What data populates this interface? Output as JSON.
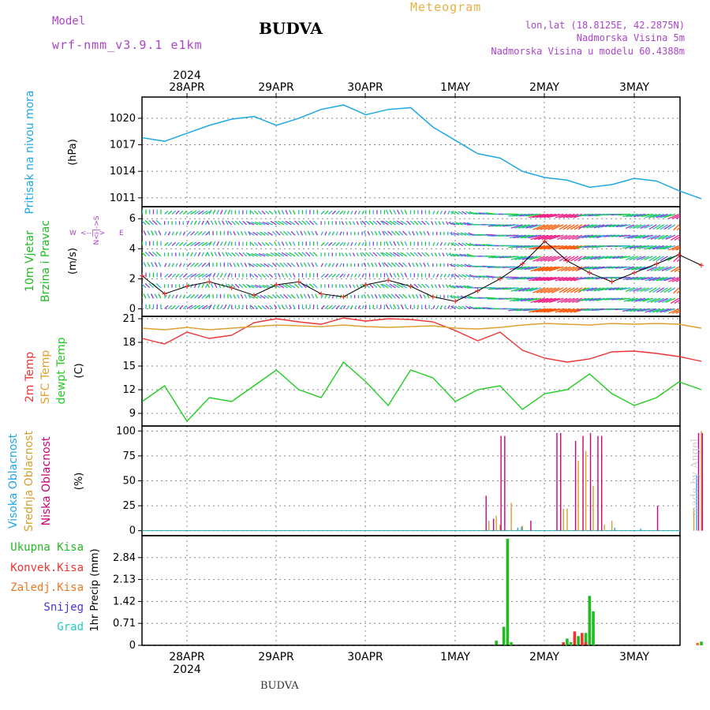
{
  "header": {
    "model_label": "Model",
    "model_name": "wrf-nmm_v3.9.1 e1km",
    "station": "BUDVA",
    "meteogram_label": "Meteogram",
    "lonlat": "lon,lat (18.8125E, 42.2875N)",
    "elevation": "Nadmorska Visina 5m",
    "model_elevation": "Nadmorska Visina u modelu 60.4388m"
  },
  "footer": {
    "station": "BUDVA",
    "credit": "made by Angel"
  },
  "colors": {
    "pressure": "#1fa8e6",
    "wind_speed_label": "#22bb22",
    "temp2m": "#ee3333",
    "sfc_temp": "#e0a030",
    "dewpoint": "#22cc22",
    "cloud_high": "#1fa8e6",
    "cloud_mid": "#d4a030",
    "cloud_low": "#cc0077",
    "precip_total": "#22bb22",
    "precip_conv": "#ee3333",
    "precip_frozen": "#ee7722",
    "precip_snow": "#4433dd",
    "precip_graupel": "#22ccbb",
    "axis_legend": "#aa44cc"
  },
  "chart_data": [
    {
      "type": "line",
      "panel": "pressure",
      "ylabel": "Pritisak na nivou mora",
      "unit": "(hPa)",
      "yticks": [
        1011,
        1014,
        1017,
        1020
      ],
      "ylim": [
        1010.0,
        1022.4
      ],
      "xlabels_top": [
        "28APR",
        "29APR",
        "30APR",
        "1MAY",
        "2MAY",
        "3MAY"
      ],
      "year": "2024",
      "x_hours": [
        0,
        6,
        12,
        18,
        24,
        30,
        36,
        42,
        48,
        54,
        60,
        66,
        72,
        78,
        84,
        90,
        96,
        102,
        108,
        114,
        120,
        126,
        132,
        138,
        144,
        150
      ],
      "values": [
        1017.8,
        1017.4,
        1018.3,
        1019.2,
        1019.9,
        1020.2,
        1019.2,
        1020.0,
        1021.0,
        1021.5,
        1020.4,
        1021.0,
        1021.2,
        1019.0,
        1017.5,
        1016.0,
        1015.5,
        1014.0,
        1013.3,
        1013.0,
        1012.2,
        1012.5,
        1013.2,
        1012.9,
        1011.8,
        1010.9
      ],
      "grid": true
    },
    {
      "type": "line",
      "panel": "wind",
      "ylabel": "10m Vjetar Brzina i Pravac",
      "unit": "(m/s)",
      "compass_legend": {
        "n": "N",
        "s": "S",
        "e": "E",
        "w": "W"
      },
      "yticks": [
        0,
        2,
        4,
        6
      ],
      "ylim": [
        -0.5,
        6.8
      ],
      "x_hours": [
        0,
        6,
        12,
        18,
        24,
        30,
        36,
        42,
        48,
        54,
        60,
        66,
        72,
        78,
        84,
        90,
        96,
        102,
        108,
        114,
        120,
        126,
        132,
        138,
        144,
        150
      ],
      "wind_speed": [
        2.2,
        1.0,
        1.5,
        1.8,
        1.4,
        0.9,
        1.6,
        1.8,
        1.0,
        0.8,
        1.6,
        1.9,
        1.5,
        0.8,
        0.5,
        1.2,
        2.0,
        3.0,
        4.5,
        3.2,
        2.4,
        1.8,
        2.4,
        3.0,
        3.6,
        2.9
      ],
      "wind_direction_deg": [
        90,
        70,
        60,
        80,
        90,
        110,
        100,
        90,
        70,
        80,
        90,
        100,
        90,
        80,
        120,
        160,
        180,
        200,
        210,
        220,
        200,
        190,
        210,
        220,
        230,
        210
      ],
      "grid": true
    },
    {
      "type": "line",
      "panel": "temperature",
      "ylabel_series": [
        "2m Temp",
        "SFC Temp",
        "dewpt Temp"
      ],
      "unit": "(C)",
      "yticks": [
        9,
        12,
        15,
        18,
        21
      ],
      "ylim": [
        7.4,
        21.3
      ],
      "x_hours": [
        0,
        6,
        12,
        18,
        24,
        30,
        36,
        42,
        48,
        54,
        60,
        66,
        72,
        78,
        84,
        90,
        96,
        102,
        108,
        114,
        120,
        126,
        132,
        138,
        144,
        150
      ],
      "series": [
        {
          "name": "2m Temp",
          "values": [
            18.5,
            17.8,
            19.3,
            18.5,
            18.9,
            20.5,
            21.0,
            20.6,
            20.3,
            21.1,
            20.7,
            21.0,
            20.9,
            20.6,
            19.5,
            18.2,
            19.3,
            17.0,
            16.0,
            15.5,
            15.9,
            16.8,
            16.9,
            16.6,
            16.2,
            15.6
          ]
        },
        {
          "name": "SFC Temp",
          "values": [
            19.8,
            19.6,
            19.9,
            19.6,
            19.8,
            20.0,
            20.2,
            20.1,
            20.0,
            20.2,
            20.0,
            19.9,
            20.0,
            20.1,
            19.8,
            19.7,
            19.9,
            20.2,
            20.4,
            20.3,
            20.2,
            20.4,
            20.3,
            20.4,
            20.3,
            19.8
          ]
        },
        {
          "name": "dewpt Temp",
          "values": [
            10.5,
            12.5,
            8.0,
            11.0,
            10.5,
            12.5,
            14.5,
            12.0,
            11.0,
            15.5,
            13.0,
            10.0,
            14.5,
            13.5,
            10.5,
            12.0,
            12.5,
            9.5,
            11.5,
            12.0,
            14.0,
            11.5,
            10.0,
            11.0,
            13.0,
            12.0
          ]
        }
      ],
      "grid": true
    },
    {
      "type": "bar",
      "panel": "cloud",
      "ylabel_series": [
        "Visoka Oblacnost",
        "Srednja Oblacnost",
        "Niska Oblacnost"
      ],
      "unit": "(%)",
      "yticks": [
        0,
        25,
        50,
        75,
        100
      ],
      "ylim": [
        -5,
        105
      ],
      "series": [
        {
          "name": "Visoka Oblacnost",
          "x_hours": [
            101,
            102,
            127,
            134,
            149
          ],
          "values": [
            3,
            4,
            3,
            2,
            55
          ]
        },
        {
          "name": "Srednja Oblacnost",
          "x_hours": [
            93,
            95,
            96,
            99,
            102,
            113,
            114,
            117,
            119,
            121,
            124,
            126,
            148,
            150
          ],
          "values": [
            10,
            15,
            6,
            28,
            5,
            22,
            22,
            70,
            80,
            45,
            6,
            10,
            22,
            100
          ]
        },
        {
          "name": "Niska Oblacnost",
          "x_hours": [
            92,
            94,
            96,
            97,
            104,
            111,
            112,
            116,
            118,
            120,
            122,
            123,
            138,
            149,
            150
          ],
          "values": [
            35,
            12,
            95,
            95,
            10,
            98,
            98,
            90,
            95,
            98,
            95,
            95,
            25,
            98,
            98
          ]
        }
      ],
      "grid": true
    },
    {
      "type": "bar",
      "panel": "precipitation",
      "legend": [
        "Ukupna Kisa",
        "Konvek.Kisa",
        "Zaledj.Kisa",
        "Snijeg",
        "Grad"
      ],
      "ylabel": "1hr Precip (mm)",
      "yticks": [
        0,
        0.71,
        1.42,
        2.13,
        2.84
      ],
      "ylim": [
        0,
        3.55
      ],
      "xlabels_bottom": [
        "28APR",
        "29APR",
        "30APR",
        "1MAY",
        "2MAY",
        "3MAY"
      ],
      "year": "2024",
      "series": [
        {
          "name": "Ukupna Kisa",
          "x_hours": [
            95,
            97,
            98,
            99,
            114,
            115,
            117,
            119,
            120,
            121,
            150
          ],
          "values": [
            0.15,
            0.6,
            3.45,
            0.1,
            0.22,
            0.1,
            0.3,
            0.4,
            1.6,
            1.1,
            0.12
          ]
        },
        {
          "name": "Konvek.Kisa",
          "x_hours": [
            113,
            116,
            118,
            119
          ],
          "values": [
            0.1,
            0.45,
            0.4,
            0.1
          ]
        },
        {
          "name": "Zaledj.Kisa",
          "x_hours": [
            149
          ],
          "values": [
            0.08
          ]
        }
      ],
      "grid": true
    }
  ]
}
